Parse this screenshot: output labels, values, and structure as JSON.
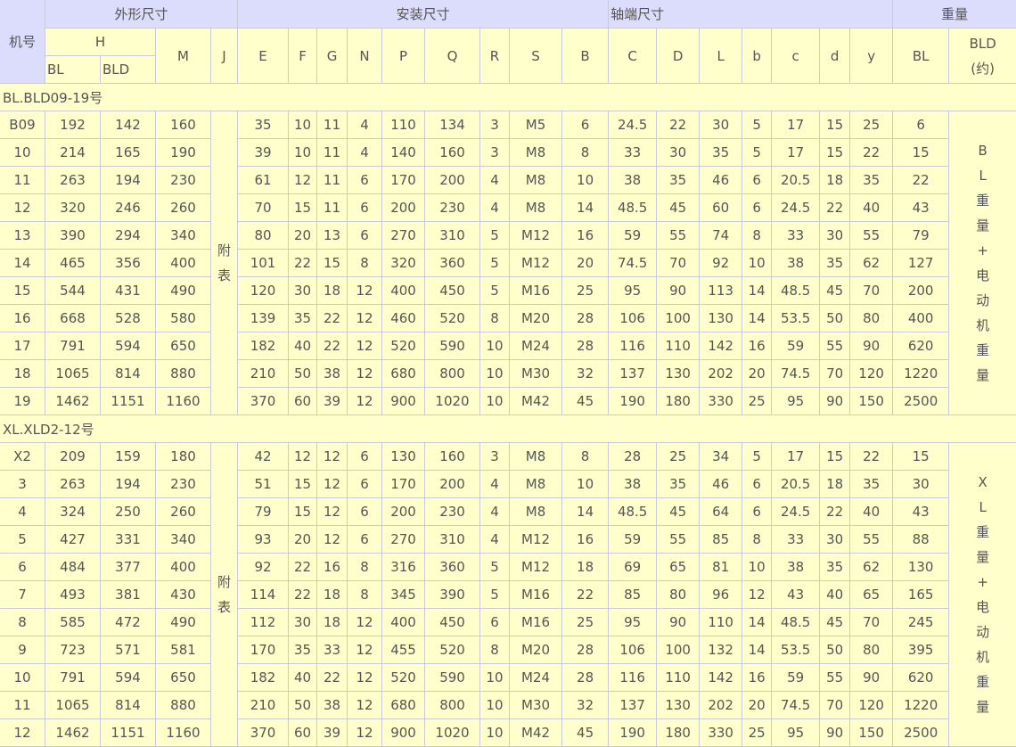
{
  "header": {
    "model": "机号",
    "outer_dims": "外形尺寸",
    "install_dims": "安装尺寸",
    "shaft_dims": "轴端尺寸",
    "weight": "重量",
    "H": "H",
    "H_BL": "BL",
    "H_BLD": "BLD",
    "M": "M",
    "J": "J",
    "cols": [
      "E",
      "F",
      "G",
      "N",
      "P",
      "Q",
      "R",
      "S",
      "B",
      "C",
      "D",
      "L",
      "b",
      "c",
      "d",
      "y"
    ],
    "weight_BL": "BL",
    "weight_BLD": "BLD",
    "weight_BLD_note": "(约)"
  },
  "colors": {
    "header_bg": "#dcdcfc",
    "cell_bg": "#ffffcc",
    "border": "#c9c9d9",
    "text": "#555555"
  },
  "sections": [
    {
      "title": "BL.BLD09-19号",
      "j_note": [
        "附",
        "表"
      ],
      "weight_note": [
        "BL",
        "重",
        "量",
        "+",
        "电",
        "动",
        "机",
        "重",
        "量"
      ],
      "rows": [
        [
          "B09",
          "192",
          "142",
          "160",
          "35",
          "10",
          "11",
          "4",
          "110",
          "134",
          "3",
          "M5",
          "6",
          "24.5",
          "22",
          "30",
          "5",
          "17",
          "15",
          "25",
          "6"
        ],
        [
          "10",
          "214",
          "165",
          "190",
          "39",
          "10",
          "11",
          "4",
          "140",
          "160",
          "3",
          "M8",
          "8",
          "33",
          "30",
          "35",
          "5",
          "17",
          "15",
          "22",
          "15"
        ],
        [
          "11",
          "263",
          "194",
          "230",
          "61",
          "12",
          "11",
          "6",
          "170",
          "200",
          "4",
          "M8",
          "10",
          "38",
          "35",
          "46",
          "6",
          "20.5",
          "18",
          "35",
          "22"
        ],
        [
          "12",
          "320",
          "246",
          "260",
          "70",
          "15",
          "11",
          "6",
          "200",
          "230",
          "4",
          "M8",
          "14",
          "48.5",
          "45",
          "60",
          "6",
          "24.5",
          "22",
          "40",
          "43"
        ],
        [
          "13",
          "390",
          "294",
          "340",
          "80",
          "20",
          "13",
          "6",
          "270",
          "310",
          "5",
          "M12",
          "16",
          "59",
          "55",
          "74",
          "8",
          "33",
          "30",
          "55",
          "79"
        ],
        [
          "14",
          "465",
          "356",
          "400",
          "101",
          "22",
          "15",
          "8",
          "320",
          "360",
          "5",
          "M12",
          "20",
          "74.5",
          "70",
          "92",
          "10",
          "38",
          "35",
          "62",
          "127"
        ],
        [
          "15",
          "544",
          "431",
          "490",
          "120",
          "30",
          "18",
          "12",
          "400",
          "450",
          "5",
          "M16",
          "25",
          "95",
          "90",
          "113",
          "14",
          "48.5",
          "45",
          "70",
          "200"
        ],
        [
          "16",
          "668",
          "528",
          "580",
          "139",
          "35",
          "22",
          "12",
          "460",
          "520",
          "8",
          "M20",
          "28",
          "106",
          "100",
          "130",
          "14",
          "53.5",
          "50",
          "80",
          "400"
        ],
        [
          "17",
          "791",
          "594",
          "650",
          "182",
          "40",
          "22",
          "12",
          "520",
          "590",
          "10",
          "M24",
          "28",
          "116",
          "110",
          "142",
          "16",
          "59",
          "55",
          "90",
          "620"
        ],
        [
          "18",
          "1065",
          "814",
          "880",
          "210",
          "50",
          "38",
          "12",
          "680",
          "800",
          "10",
          "M30",
          "32",
          "137",
          "130",
          "202",
          "20",
          "74.5",
          "70",
          "120",
          "1220"
        ],
        [
          "19",
          "1462",
          "1151",
          "1160",
          "370",
          "60",
          "39",
          "12",
          "900",
          "1020",
          "10",
          "M42",
          "45",
          "190",
          "180",
          "330",
          "25",
          "95",
          "90",
          "150",
          "2500"
        ]
      ]
    },
    {
      "title": "XL.XLD2-12号",
      "j_note": [
        "附",
        "表"
      ],
      "weight_note": [
        "XL",
        "重",
        "量",
        "+",
        "电",
        "动",
        "机",
        "重",
        "量"
      ],
      "rows": [
        [
          "X2",
          "209",
          "159",
          "180",
          "42",
          "12",
          "12",
          "6",
          "130",
          "160",
          "3",
          "M8",
          "8",
          "28",
          "25",
          "34",
          "5",
          "17",
          "15",
          "22",
          "15"
        ],
        [
          "3",
          "263",
          "194",
          "230",
          "51",
          "15",
          "12",
          "6",
          "170",
          "200",
          "4",
          "M8",
          "10",
          "38",
          "35",
          "46",
          "6",
          "20.5",
          "18",
          "35",
          "30"
        ],
        [
          "4",
          "324",
          "250",
          "260",
          "79",
          "15",
          "12",
          "6",
          "200",
          "230",
          "4",
          "M8",
          "14",
          "48.5",
          "45",
          "64",
          "6",
          "24.5",
          "22",
          "40",
          "43"
        ],
        [
          "5",
          "427",
          "331",
          "340",
          "93",
          "20",
          "12",
          "6",
          "270",
          "310",
          "4",
          "M12",
          "16",
          "59",
          "55",
          "85",
          "8",
          "33",
          "30",
          "55",
          "88"
        ],
        [
          "6",
          "484",
          "377",
          "400",
          "92",
          "22",
          "16",
          "8",
          "316",
          "360",
          "5",
          "M12",
          "18",
          "69",
          "65",
          "81",
          "10",
          "38",
          "35",
          "62",
          "130"
        ],
        [
          "7",
          "493",
          "381",
          "430",
          "114",
          "22",
          "18",
          "8",
          "345",
          "390",
          "5",
          "M16",
          "22",
          "85",
          "80",
          "96",
          "12",
          "43",
          "40",
          "65",
          "165"
        ],
        [
          "8",
          "585",
          "472",
          "490",
          "112",
          "30",
          "18",
          "12",
          "400",
          "450",
          "6",
          "M16",
          "25",
          "95",
          "90",
          "110",
          "14",
          "48.5",
          "45",
          "70",
          "245"
        ],
        [
          "9",
          "723",
          "571",
          "581",
          "170",
          "35",
          "33",
          "12",
          "455",
          "520",
          "8",
          "M20",
          "28",
          "106",
          "100",
          "132",
          "14",
          "53.5",
          "50",
          "80",
          "395"
        ],
        [
          "10",
          "791",
          "594",
          "650",
          "182",
          "40",
          "22",
          "12",
          "520",
          "590",
          "10",
          "M24",
          "28",
          "116",
          "110",
          "142",
          "16",
          "59",
          "55",
          "90",
          "620"
        ],
        [
          "11",
          "1065",
          "814",
          "880",
          "210",
          "50",
          "38",
          "12",
          "680",
          "800",
          "10",
          "M30",
          "32",
          "137",
          "130",
          "202",
          "20",
          "74.5",
          "70",
          "120",
          "1220"
        ],
        [
          "12",
          "1462",
          "1151",
          "1160",
          "370",
          "60",
          "39",
          "12",
          "900",
          "1020",
          "10",
          "M42",
          "45",
          "190",
          "180",
          "330",
          "25",
          "95",
          "90",
          "150",
          "2500"
        ]
      ]
    }
  ]
}
